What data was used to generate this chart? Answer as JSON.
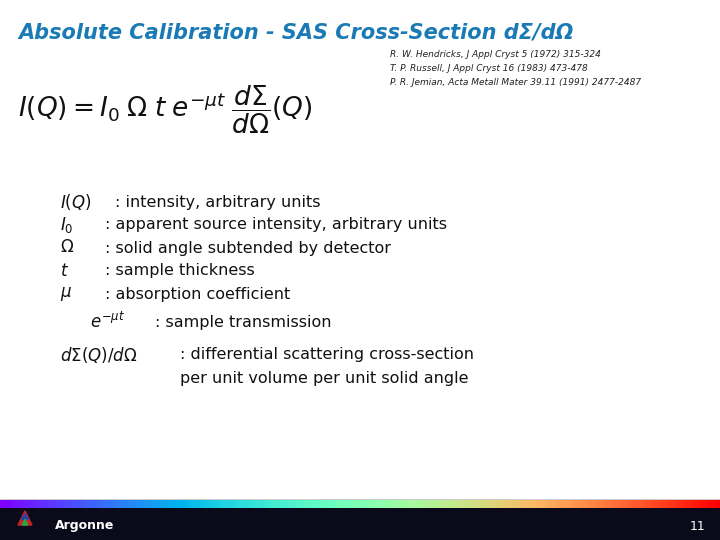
{
  "title": "Absolute Calibration - SAS Cross-Section dΣ/dΩ",
  "title_color": "#1a7ab5",
  "title_fontsize": 15,
  "background_color": "#ffffff",
  "references": [
    "R. W. Hendricks, J Appl Cryst 5 (1972) 315-324",
    "T. P. Russell, J Appl Cryst 16 (1983) 473-478",
    "P. R. Jemian, Acta Metall Mater 39.11 (1991) 2477-2487"
  ],
  "footer_bg": "#0a0a1a",
  "page_number": "11"
}
